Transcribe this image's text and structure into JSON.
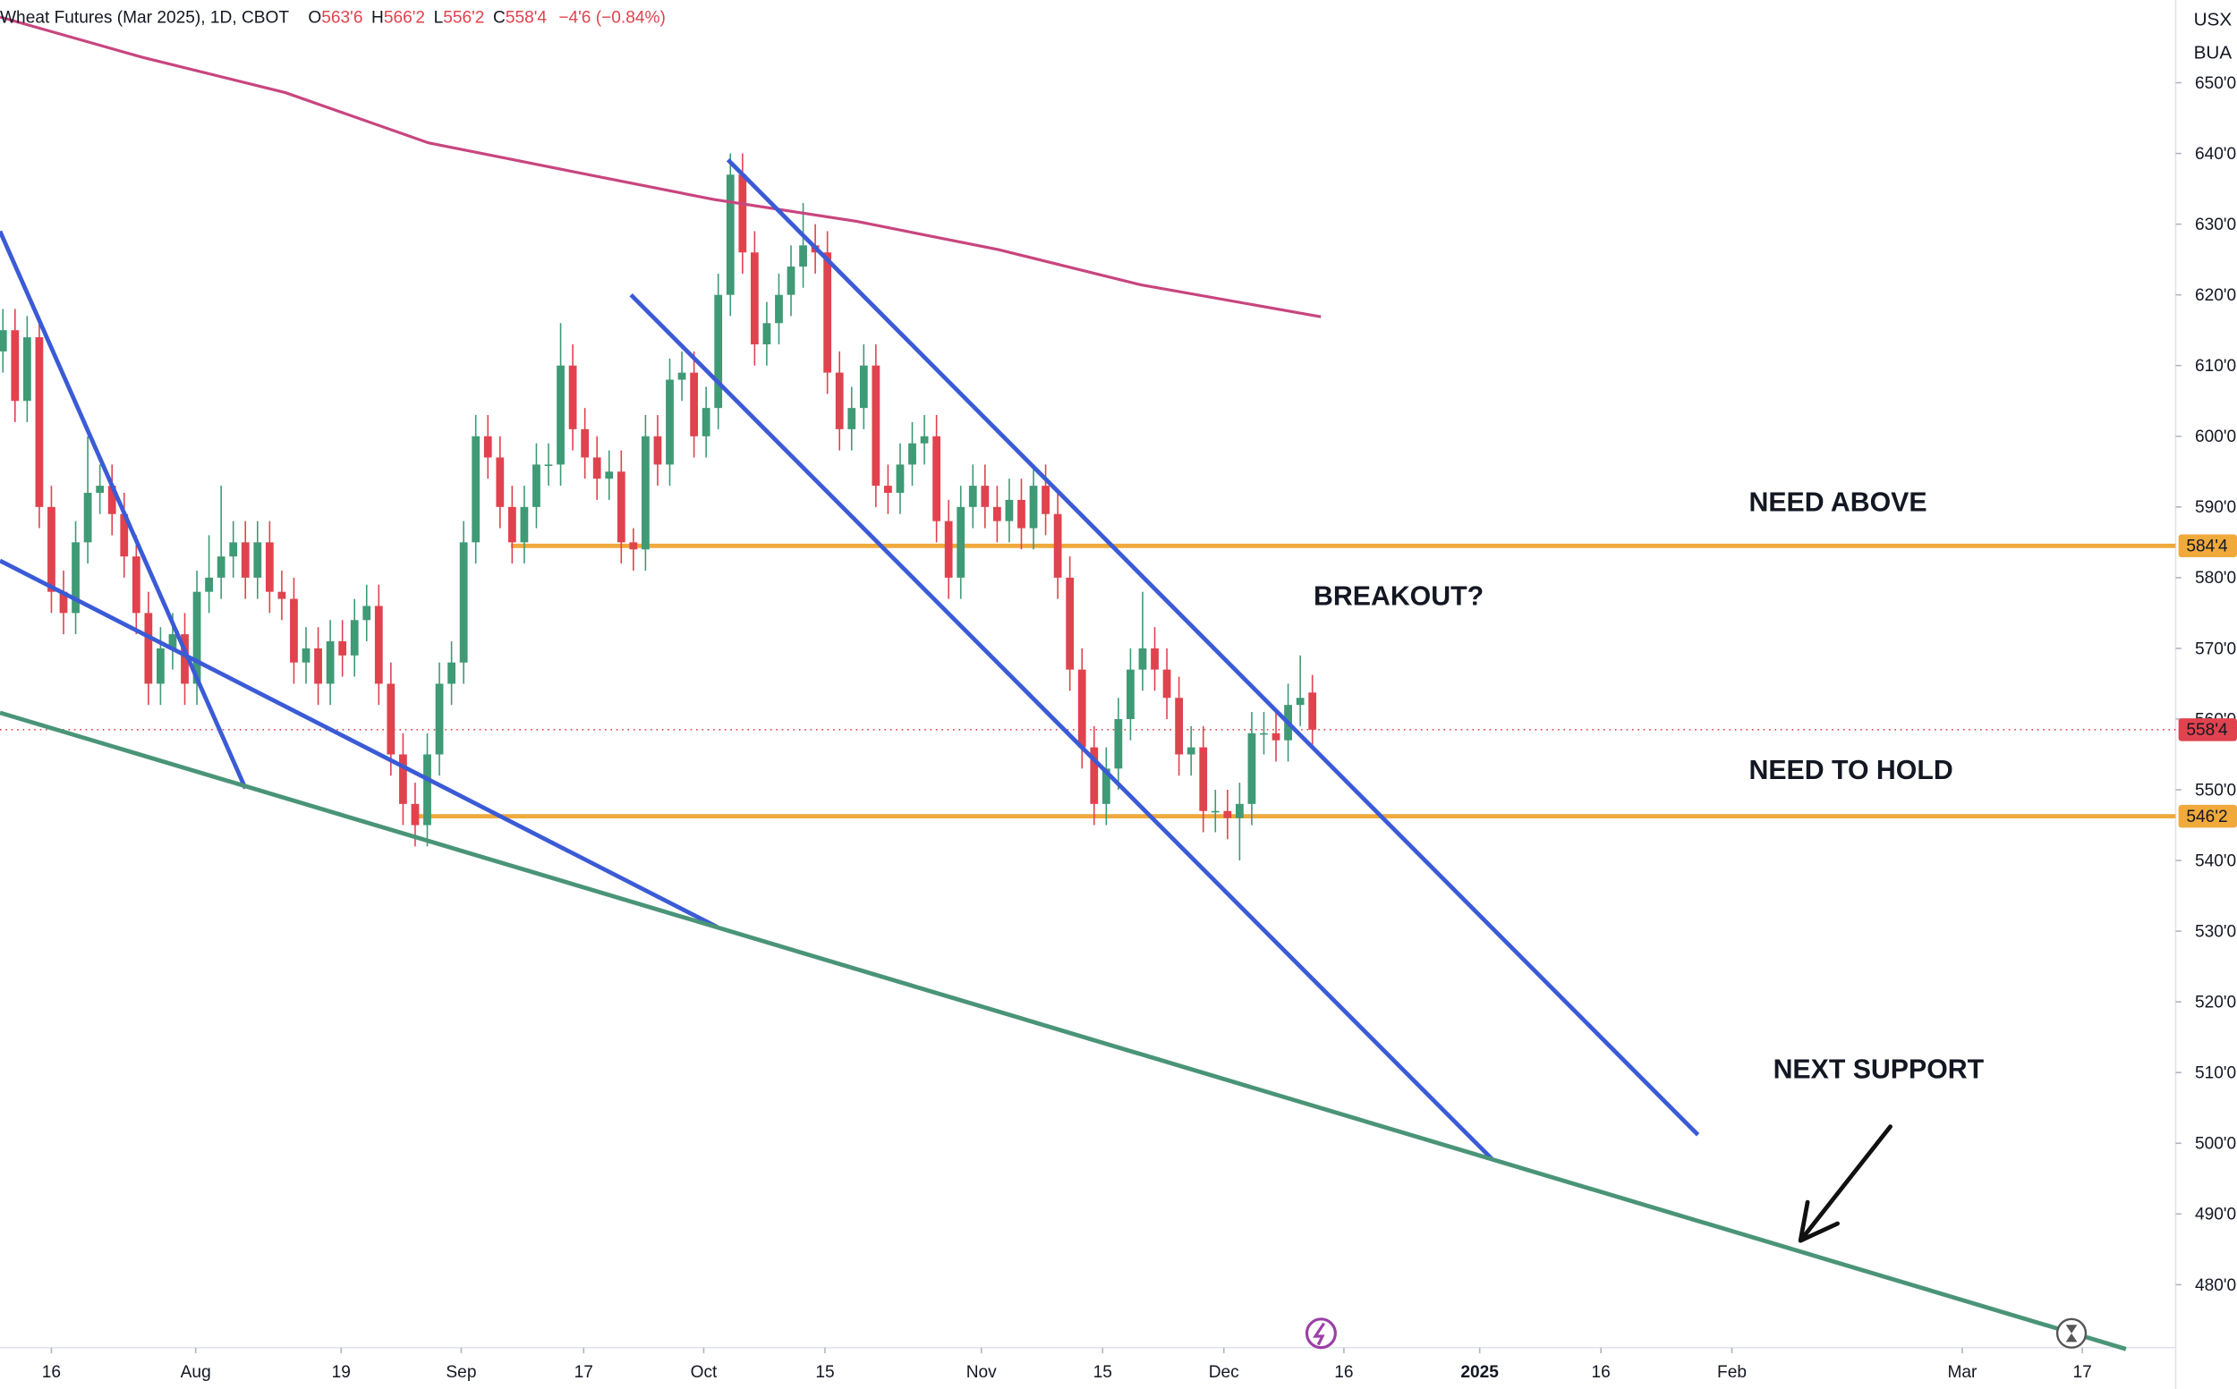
{
  "chart_data": {
    "type": "candlestick",
    "header": {
      "title": "Wheat Futures (Mar 2025), 1D, CBOT",
      "ohlc": [
        {
          "label": "O",
          "value": "563'6"
        },
        {
          "label": "H",
          "value": "566'2"
        },
        {
          "label": "L",
          "value": "556'2"
        },
        {
          "label": "C",
          "value": "558'4"
        }
      ],
      "change": "−4'6 (−0.84%)"
    },
    "currency": "USX",
    "unit": "BUA",
    "up_color": "#3f9a76",
    "down_color": "#e0434e",
    "xlim": [
      -0.24,
      179.2
    ],
    "ylim": [
      471.1,
      661.7
    ],
    "xticks": [
      {
        "value": 4.0,
        "label": "16"
      },
      {
        "value": 15.9,
        "label": "Aug"
      },
      {
        "value": 27.9,
        "label": "19"
      },
      {
        "value": 37.8,
        "label": "Sep"
      },
      {
        "value": 47.9,
        "label": "17"
      },
      {
        "value": 57.8,
        "label": "Oct"
      },
      {
        "value": 67.8,
        "label": "15"
      },
      {
        "value": 80.7,
        "label": "Nov"
      },
      {
        "value": 90.7,
        "label": "15"
      },
      {
        "value": 100.7,
        "label": "Dec"
      },
      {
        "value": 110.6,
        "label": "16"
      },
      {
        "value": 121.8,
        "label": "2025"
      },
      {
        "value": 131.8,
        "label": "16"
      },
      {
        "value": 142.6,
        "label": "Feb"
      },
      {
        "value": 161.6,
        "label": "Mar"
      },
      {
        "value": 171.5,
        "label": "17"
      }
    ],
    "yticks": [
      {
        "value": 480,
        "label": "480'0"
      },
      {
        "value": 490,
        "label": "490'0"
      },
      {
        "value": 500,
        "label": "500'0"
      },
      {
        "value": 510,
        "label": "510'0"
      },
      {
        "value": 520,
        "label": "520'0"
      },
      {
        "value": 530,
        "label": "530'0"
      },
      {
        "value": 540,
        "label": "540'0"
      },
      {
        "value": 550,
        "label": "550'0"
      },
      {
        "value": 560,
        "label": "560'0"
      },
      {
        "value": 570,
        "label": "570'0"
      },
      {
        "value": 580,
        "label": "580'0"
      },
      {
        "value": 590,
        "label": "590'0"
      },
      {
        "value": 600,
        "label": "600'0"
      },
      {
        "value": 610,
        "label": "610'0"
      },
      {
        "value": 620,
        "label": "620'0"
      },
      {
        "value": 630,
        "label": "630'0"
      },
      {
        "value": 640,
        "label": "640'0"
      },
      {
        "value": 650,
        "label": "650'0"
      }
    ],
    "candles": {
      "x": [
        0,
        1,
        2,
        3,
        4,
        5,
        6,
        7,
        8,
        9,
        10,
        11,
        12,
        13,
        14,
        15,
        16,
        17,
        18,
        19,
        20,
        21,
        22,
        23,
        24,
        25,
        26,
        27,
        28,
        29,
        30,
        31,
        32,
        33,
        34,
        35,
        36,
        37,
        38,
        39,
        40,
        41,
        42,
        43,
        44,
        45,
        46,
        47,
        48,
        49,
        50,
        51,
        52,
        53,
        54,
        55,
        56,
        57,
        58,
        59,
        60,
        61,
        62,
        63,
        64,
        65,
        66,
        67,
        68,
        69,
        70,
        71,
        72,
        73,
        74,
        75,
        76,
        77,
        78,
        79,
        80,
        81,
        82,
        83,
        84,
        85,
        86,
        87,
        88,
        89,
        90,
        91,
        92,
        93,
        94,
        95,
        96,
        97,
        98,
        99,
        100,
        101,
        102,
        103,
        104,
        105,
        106,
        107,
        108
      ],
      "open": [
        612,
        615,
        605,
        614,
        590,
        578,
        575,
        585,
        592,
        593,
        589,
        583,
        575,
        565,
        570,
        572,
        565,
        578,
        580,
        583,
        585,
        580,
        585,
        578,
        577,
        568,
        570,
        565,
        571,
        569,
        574,
        576,
        565,
        555,
        548,
        545,
        555,
        565,
        568,
        585,
        600,
        597,
        590,
        585,
        590,
        596,
        596,
        610,
        601,
        597,
        594,
        595,
        585,
        584,
        600,
        596,
        608,
        609,
        600,
        604,
        620,
        637,
        626,
        613,
        616,
        620,
        624,
        627,
        626,
        609,
        601,
        604,
        610,
        593,
        592,
        596,
        599,
        600,
        588,
        580,
        590,
        593,
        590,
        588,
        591,
        587,
        593,
        589,
        580,
        567,
        556,
        548,
        553,
        560,
        567,
        570,
        567,
        563,
        555,
        556,
        547,
        547,
        546,
        548,
        558,
        558,
        557,
        562,
        563.75
      ],
      "high": [
        618,
        618,
        617,
        617,
        593,
        581,
        588,
        600,
        596,
        596,
        592,
        586,
        578,
        573,
        575,
        575,
        581,
        586,
        593,
        588,
        588,
        588,
        588,
        581,
        580,
        573,
        573,
        574,
        574,
        577,
        579,
        579,
        568,
        558,
        551,
        558,
        568,
        571,
        588,
        603,
        603,
        600,
        593,
        593,
        599,
        599,
        616,
        613,
        604,
        600,
        598,
        598,
        587,
        603,
        603,
        611,
        612,
        612,
        607,
        623,
        640,
        640,
        629,
        619,
        623,
        627,
        633,
        630,
        629,
        612,
        607,
        613,
        613,
        596,
        599,
        602,
        603,
        603,
        591,
        593,
        596,
        596,
        593,
        594,
        594,
        596,
        596,
        592,
        583,
        570,
        559,
        556,
        563,
        570,
        578,
        573,
        570,
        566,
        559,
        559,
        550,
        550,
        551,
        561,
        561,
        561,
        565,
        569,
        566.25
      ],
      "low": [
        609,
        602,
        602,
        587,
        575,
        572,
        572,
        582,
        589,
        586,
        580,
        572,
        562,
        562,
        567,
        562,
        562,
        575,
        577,
        580,
        577,
        577,
        575,
        574,
        565,
        565,
        562,
        562,
        566,
        566,
        571,
        562,
        552,
        545,
        542,
        542,
        552,
        562,
        565,
        582,
        594,
        587,
        582,
        582,
        587,
        593,
        593,
        598,
        594,
        591,
        591,
        582,
        581,
        581,
        593,
        593,
        605,
        597,
        597,
        601,
        617,
        623,
        610,
        610,
        613,
        617,
        621,
        623,
        606,
        598,
        598,
        601,
        590,
        589,
        589,
        593,
        596,
        585,
        577,
        577,
        587,
        587,
        585,
        585,
        584,
        584,
        586,
        577,
        564,
        553,
        545,
        545,
        550,
        557,
        564,
        564,
        560,
        552,
        552,
        544,
        544,
        543,
        540,
        545,
        555,
        554,
        554,
        559,
        556.25
      ],
      "close": [
        615,
        605,
        614,
        590,
        578,
        575,
        585,
        592,
        593,
        589,
        583,
        575,
        565,
        570,
        572,
        565,
        578,
        580,
        583,
        585,
        580,
        585,
        578,
        577,
        568,
        570,
        565,
        571,
        569,
        574,
        576,
        565,
        555,
        548,
        545,
        555,
        565,
        568,
        585,
        600,
        597,
        590,
        585,
        590,
        596,
        596,
        610,
        601,
        597,
        594,
        595,
        585,
        584,
        600,
        596,
        608,
        609,
        600,
        604,
        620,
        637,
        626,
        613,
        616,
        620,
        624,
        627,
        626,
        609,
        601,
        604,
        610,
        593,
        592,
        596,
        599,
        600,
        588,
        580,
        590,
        593,
        590,
        588,
        591,
        587,
        593,
        589,
        580,
        567,
        556,
        548,
        553,
        560,
        567,
        570,
        567,
        563,
        555,
        556,
        547,
        547,
        546,
        548,
        558,
        558,
        557,
        562,
        563,
        558.5
      ]
    },
    "moving_average": {
      "color": "#c8457f",
      "x": [
        -0.24,
        11.5,
        23.3,
        35.1,
        46.8,
        58.6,
        70.4,
        82.1,
        93.9,
        108.7
      ],
      "y": [
        659.3,
        653.6,
        648.6,
        641.5,
        637.5,
        633.5,
        630.4,
        626.4,
        621.4,
        616.9
      ]
    },
    "trendlines": [
      {
        "color": "#3b5bd6",
        "x": [
          -0.24,
          20.0
        ],
        "y": [
          629.0,
          550.2
        ]
      },
      {
        "color": "#3b5bd6",
        "x": [
          -0.24,
          58.9
        ],
        "y": [
          582.4,
          530.6
        ]
      },
      {
        "color": "#3b5bd6",
        "x": [
          51.8,
          122.8
        ],
        "y": [
          620.0,
          497.8
        ]
      },
      {
        "color": "#3b5bd6",
        "x": [
          59.8,
          139.8
        ],
        "y": [
          639.1,
          501.2
        ]
      },
      {
        "color": "#4a9478",
        "x": [
          -0.24,
          175.1
        ],
        "y": [
          560.9,
          470.9
        ]
      }
    ],
    "levels": [
      {
        "value": 584.5,
        "label": "584'4",
        "x_start": 41.9,
        "color": "#f0a93b"
      },
      {
        "value": 546.25,
        "label": "546'2",
        "x_start": 33.9,
        "color": "#f0a93b"
      }
    ],
    "last_price": {
      "value": 558.5,
      "label": "558'4",
      "color": "#e0434e"
    },
    "annotations": [
      {
        "text": "NEED ABOVE",
        "x": 144.0,
        "y": 589.4
      },
      {
        "text": "BREAKOUT?",
        "x": 108.1,
        "y": 576.1
      },
      {
        "text": "NEED TO HOLD",
        "x": 144.0,
        "y": 551.5
      },
      {
        "text": "NEXT SUPPORT",
        "x": 146.0,
        "y": 509.2
      }
    ]
  }
}
